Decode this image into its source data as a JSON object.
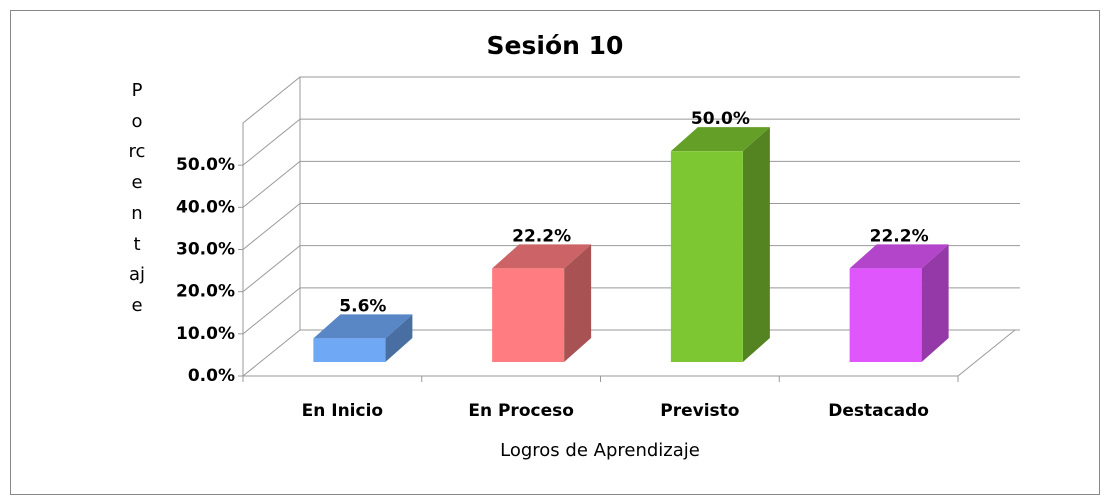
{
  "chart_data": {
    "type": "bar3d",
    "title": "Sesión 10",
    "x_label": "Logros de Aprendizaje",
    "y_label": "Porcentaje",
    "categories": [
      "En Inicio",
      "En Proceso",
      "Previsto",
      "Destacado"
    ],
    "values": [
      5.6,
      22.2,
      50.0,
      22.2
    ],
    "value_labels": [
      "5.6%",
      "22.2%",
      "50.0%",
      "22.2%"
    ],
    "colors": [
      "#6fa8f5",
      "#ff7c80",
      "#7dc832",
      "#e056fd"
    ],
    "ylim": [
      0,
      60
    ],
    "yticks": [
      {
        "value": 0,
        "label": "0.0%"
      },
      {
        "value": 10,
        "label": "10.0%"
      },
      {
        "value": 20,
        "label": "20.0%"
      },
      {
        "value": 30,
        "label": "30.0%"
      },
      {
        "value": 40,
        "label": "40.0%"
      },
      {
        "value": 50,
        "label": "50.0%"
      }
    ],
    "grid": true
  }
}
